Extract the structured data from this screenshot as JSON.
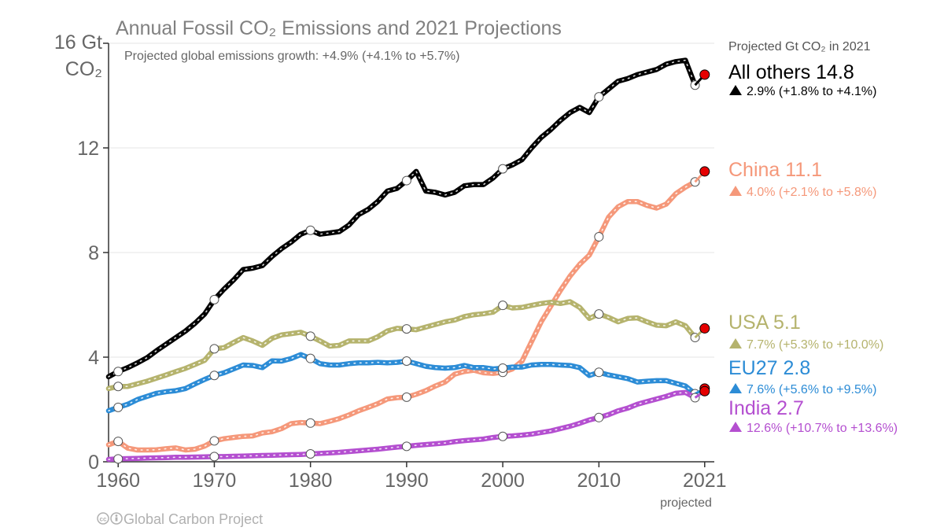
{
  "chart_data": {
    "type": "line",
    "title": "Annual Fossil CO₂ Emissions and 2021 Projections",
    "subtitle": "Projected global emissions growth: +4.9% (+4.1% to +5.7%)",
    "ylabel_line1": "16 Gt",
    "ylabel_line2": "CO₂",
    "ylim": [
      0,
      16
    ],
    "xlim": [
      1959,
      2022
    ],
    "yticks": [
      {
        "value": 0,
        "label": "0"
      },
      {
        "value": 4,
        "label": "4"
      },
      {
        "value": 8,
        "label": "8"
      },
      {
        "value": 12,
        "label": "12"
      }
    ],
    "xticks": [
      {
        "value": 1960,
        "label": "1960"
      },
      {
        "value": 1970,
        "label": "1970"
      },
      {
        "value": 1980,
        "label": "1980"
      },
      {
        "value": 1990,
        "label": "1990"
      },
      {
        "value": 2000,
        "label": "2000"
      },
      {
        "value": 2010,
        "label": "2010"
      },
      {
        "value": 2021,
        "label": "2021"
      }
    ],
    "projected_label": "projected",
    "legend_header": "Projected Gt CO₂ in 2021",
    "grid": true,
    "x": [
      1959,
      1960,
      1961,
      1962,
      1963,
      1964,
      1965,
      1966,
      1967,
      1968,
      1969,
      1970,
      1971,
      1972,
      1973,
      1974,
      1975,
      1976,
      1977,
      1978,
      1979,
      1980,
      1981,
      1982,
      1983,
      1984,
      1985,
      1986,
      1987,
      1988,
      1989,
      1990,
      1991,
      1992,
      1993,
      1994,
      1995,
      1996,
      1997,
      1998,
      1999,
      2000,
      2001,
      2002,
      2003,
      2004,
      2005,
      2006,
      2007,
      2008,
      2009,
      2010,
      2011,
      2012,
      2013,
      2014,
      2015,
      2016,
      2017,
      2018,
      2019,
      2020
    ],
    "projection_year": 2021,
    "series": [
      {
        "name": "All others",
        "label": "All others 14.8",
        "growth": "2.9% (+1.8% to +4.1%)",
        "color": "#000000",
        "projection": 14.8,
        "values": [
          3.25,
          3.45,
          3.6,
          3.78,
          3.98,
          4.25,
          4.5,
          4.75,
          5.0,
          5.3,
          5.65,
          6.2,
          6.6,
          6.95,
          7.35,
          7.4,
          7.5,
          7.85,
          8.15,
          8.4,
          8.7,
          8.85,
          8.7,
          8.75,
          8.8,
          9.05,
          9.45,
          9.65,
          9.95,
          10.35,
          10.45,
          10.75,
          11.1,
          10.35,
          10.3,
          10.2,
          10.3,
          10.55,
          10.6,
          10.6,
          10.85,
          11.2,
          11.35,
          11.55,
          12.0,
          12.4,
          12.7,
          13.05,
          13.35,
          13.55,
          13.35,
          13.95,
          14.25,
          14.55,
          14.65,
          14.8,
          14.9,
          15.0,
          15.2,
          15.3,
          15.35,
          14.4
        ]
      },
      {
        "name": "China",
        "label": "China 11.1",
        "growth": "4.0% (+2.1% to +5.8%)",
        "color": "#f5987a",
        "projection": 11.1,
        "values": [
          0.65,
          0.78,
          0.52,
          0.45,
          0.45,
          0.46,
          0.5,
          0.53,
          0.45,
          0.48,
          0.6,
          0.8,
          0.88,
          0.93,
          0.97,
          0.99,
          1.1,
          1.15,
          1.27,
          1.46,
          1.5,
          1.48,
          1.46,
          1.55,
          1.65,
          1.79,
          1.95,
          2.08,
          2.22,
          2.4,
          2.45,
          2.47,
          2.58,
          2.72,
          2.9,
          3.05,
          3.35,
          3.45,
          3.5,
          3.4,
          3.38,
          3.42,
          3.55,
          3.85,
          4.6,
          5.35,
          5.95,
          6.55,
          7.1,
          7.55,
          7.9,
          8.6,
          9.35,
          9.75,
          9.95,
          9.95,
          9.8,
          9.7,
          9.85,
          10.25,
          10.5,
          10.7
        ]
      },
      {
        "name": "USA",
        "label": "USA 5.1",
        "growth": "7.7% (+5.3% to +10.0%)",
        "color": "#b5b36d",
        "projection": 5.1,
        "values": [
          2.8,
          2.88,
          2.88,
          2.98,
          3.08,
          3.2,
          3.32,
          3.45,
          3.57,
          3.72,
          3.88,
          4.32,
          4.36,
          4.56,
          4.75,
          4.62,
          4.45,
          4.72,
          4.85,
          4.9,
          4.95,
          4.8,
          4.62,
          4.42,
          4.45,
          4.62,
          4.62,
          4.62,
          4.78,
          5.0,
          5.1,
          5.08,
          5.05,
          5.15,
          5.25,
          5.35,
          5.42,
          5.55,
          5.62,
          5.66,
          5.72,
          5.98,
          5.88,
          5.9,
          5.98,
          6.05,
          6.1,
          6.05,
          6.12,
          5.9,
          5.48,
          5.65,
          5.52,
          5.35,
          5.48,
          5.5,
          5.35,
          5.22,
          5.2,
          5.35,
          5.2,
          4.75
        ]
      },
      {
        "name": "EU27",
        "label": "EU27 2.8",
        "growth": "7.6% (+5.6% to +9.5%)",
        "color": "#2c8cd6",
        "projection": 2.8,
        "values": [
          1.95,
          2.08,
          2.2,
          2.38,
          2.5,
          2.62,
          2.68,
          2.72,
          2.8,
          2.98,
          3.15,
          3.3,
          3.4,
          3.55,
          3.7,
          3.68,
          3.6,
          3.86,
          3.85,
          3.95,
          4.1,
          3.95,
          3.75,
          3.7,
          3.7,
          3.75,
          3.78,
          3.78,
          3.8,
          3.78,
          3.8,
          3.85,
          3.75,
          3.65,
          3.6,
          3.58,
          3.6,
          3.68,
          3.6,
          3.6,
          3.55,
          3.58,
          3.62,
          3.62,
          3.7,
          3.72,
          3.72,
          3.7,
          3.68,
          3.6,
          3.3,
          3.42,
          3.32,
          3.25,
          3.18,
          3.05,
          3.08,
          3.1,
          3.1,
          3.0,
          2.9,
          2.6
        ]
      },
      {
        "name": "India",
        "label": "India 2.7",
        "growth": "12.6% (+10.7% to +13.6%)",
        "color": "#b44fd0",
        "projection": 2.7,
        "values": [
          0.09,
          0.11,
          0.12,
          0.13,
          0.14,
          0.15,
          0.16,
          0.17,
          0.17,
          0.18,
          0.19,
          0.2,
          0.2,
          0.21,
          0.22,
          0.23,
          0.24,
          0.25,
          0.26,
          0.27,
          0.28,
          0.3,
          0.32,
          0.34,
          0.36,
          0.39,
          0.42,
          0.45,
          0.48,
          0.52,
          0.56,
          0.59,
          0.63,
          0.66,
          0.69,
          0.72,
          0.77,
          0.81,
          0.84,
          0.87,
          0.93,
          0.97,
          0.99,
          1.02,
          1.06,
          1.12,
          1.18,
          1.27,
          1.36,
          1.47,
          1.6,
          1.69,
          1.8,
          1.95,
          2.05,
          2.2,
          2.3,
          2.4,
          2.5,
          2.62,
          2.65,
          2.45
        ]
      }
    ]
  },
  "footer": {
    "credit": "Global Carbon Project",
    "cc_icon": "cc-icon",
    "by_icon": "by-attribution-icon"
  }
}
